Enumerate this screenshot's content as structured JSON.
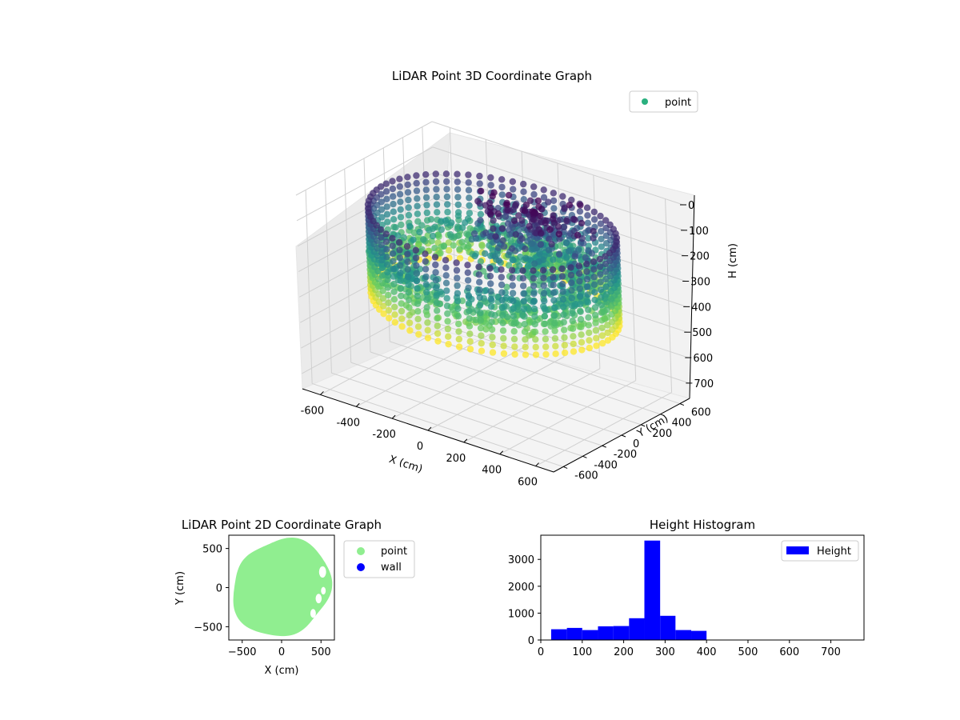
{
  "colors": {
    "viridis": [
      "#440154",
      "#3b528b",
      "#21918c",
      "#5ec962",
      "#fde725"
    ],
    "scatter_point": "#2ab07f",
    "light_point": "#90ee90",
    "wall": "#0000ff",
    "bar": "#0000ff"
  },
  "chart_data": [
    {
      "type": "scatter",
      "projection": "3d",
      "title": "LiDAR Point 3D Coordinate Graph",
      "xlabel": "X (cm)",
      "ylabel": "Y (cm)",
      "zlabel": "H (cm)",
      "xlim": [
        -700,
        700
      ],
      "ylim": [
        -700,
        700
      ],
      "zlim": [
        760,
        0
      ],
      "xticks": [
        "-600",
        "-400",
        "-200",
        "0",
        "200",
        "400",
        "600"
      ],
      "yticks": [
        "-600",
        "-400",
        "-200",
        "0",
        "200",
        "400",
        "600"
      ],
      "zticks": [
        "0",
        "100",
        "200",
        "300",
        "400",
        "500",
        "600",
        "700"
      ],
      "zaxis_inverted": true,
      "color_by": "height",
      "colormap": "viridis",
      "legend": {
        "position": "upper right",
        "entries": [
          "point"
        ]
      },
      "description_values": {
        "ring_radius_range": [
          500,
          650
        ],
        "dense_height_range": [
          230,
          300
        ],
        "height_range": [
          30,
          400
        ]
      },
      "grid": true
    },
    {
      "type": "scatter",
      "title": "LiDAR Point 2D Coordinate Graph",
      "xlabel": "X (cm)",
      "ylabel": "Y (cm)",
      "xlim": [
        -670,
        670
      ],
      "ylim": [
        -670,
        670
      ],
      "xticks": [
        -500,
        0,
        500
      ],
      "yticks": [
        -500,
        0,
        500
      ],
      "series": [
        {
          "name": "point",
          "color": "#90ee90"
        },
        {
          "name": "wall",
          "color": "#0000ff"
        }
      ],
      "legend": {
        "position": "outside right"
      },
      "grid": false
    },
    {
      "type": "bar",
      "subtype": "histogram",
      "title": "Height Histogram",
      "xlim": [
        0,
        780
      ],
      "ylim": [
        0,
        3900
      ],
      "xticks": [
        0,
        100,
        200,
        300,
        400,
        500,
        600,
        700
      ],
      "yticks": [
        0,
        1000,
        2000,
        3000
      ],
      "bin_edges": [
        25,
        63,
        100,
        138,
        175,
        213,
        250,
        288,
        325,
        363,
        400
      ],
      "values": [
        400,
        450,
        370,
        510,
        520,
        810,
        3700,
        900,
        370,
        340
      ],
      "series": [
        {
          "name": "Height",
          "color": "#0000ff"
        }
      ],
      "legend": {
        "position": "upper right"
      },
      "grid": false
    }
  ]
}
